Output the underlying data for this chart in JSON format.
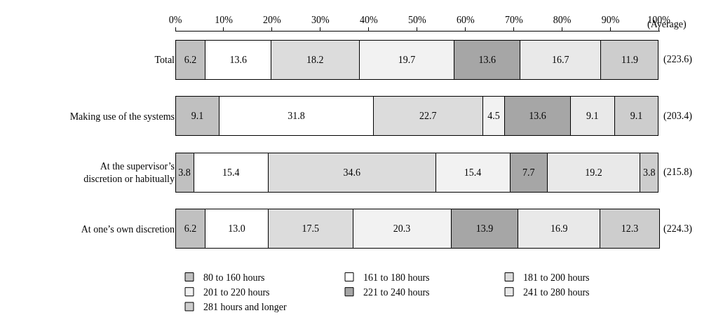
{
  "chart_data": {
    "type": "bar",
    "orientation": "horizontal",
    "stacked": true,
    "data_labels": true,
    "legend": "bottom",
    "categories": [
      "Total",
      "Making use of the systems",
      "At the supervisor’s discretion or habitually",
      "At one’s own discretion"
    ],
    "xlim": [
      0,
      100.2
    ],
    "xticks": [
      {
        "value": 0,
        "label": "0%"
      },
      {
        "value": 10,
        "label": "10%"
      },
      {
        "value": 20,
        "label": "20%"
      },
      {
        "value": 30,
        "label": "30%"
      },
      {
        "value": 40,
        "label": "40%"
      },
      {
        "value": 50,
        "label": "50%"
      },
      {
        "value": 60,
        "label": "60%"
      },
      {
        "value": 70,
        "label": "70%"
      },
      {
        "value": 80,
        "label": "80%"
      },
      {
        "value": 90,
        "label": "90%"
      },
      {
        "value": 100,
        "label": "100%"
      }
    ],
    "series": [
      {
        "name": "80 to 160 hours",
        "color": "#c0c0c0",
        "values": [
          6.2,
          9.1,
          3.8,
          6.2
        ]
      },
      {
        "name": "161 to 180 hours",
        "color": "#ffffff",
        "values": [
          13.6,
          31.8,
          15.4,
          13.0
        ],
        "value_labels": [
          "13.6",
          "31.8",
          "15.4",
          "13.0"
        ]
      },
      {
        "name": "181 to 200 hours",
        "color": "#dcdcdc",
        "values": [
          18.2,
          22.7,
          34.6,
          17.5
        ]
      },
      {
        "name": "201 to 220 hours",
        "color": "#f2f2f2",
        "values": [
          19.7,
          4.5,
          15.4,
          20.3
        ]
      },
      {
        "name": "221 to 240 hours",
        "color": "#a6a6a6",
        "values": [
          13.6,
          13.6,
          7.7,
          13.9
        ]
      },
      {
        "name": "241 to 280 hours",
        "color": "#e9e9e9",
        "values": [
          16.7,
          9.1,
          19.2,
          16.9
        ]
      },
      {
        "name": "281 hours and longer",
        "color": "#cdcdcd",
        "values": [
          11.9,
          9.1,
          3.8,
          12.3
        ]
      }
    ],
    "annotations": [
      "(Average)",
      "(223.6)",
      "(203.4)",
      "(215.8)",
      "(224.3)"
    ]
  }
}
